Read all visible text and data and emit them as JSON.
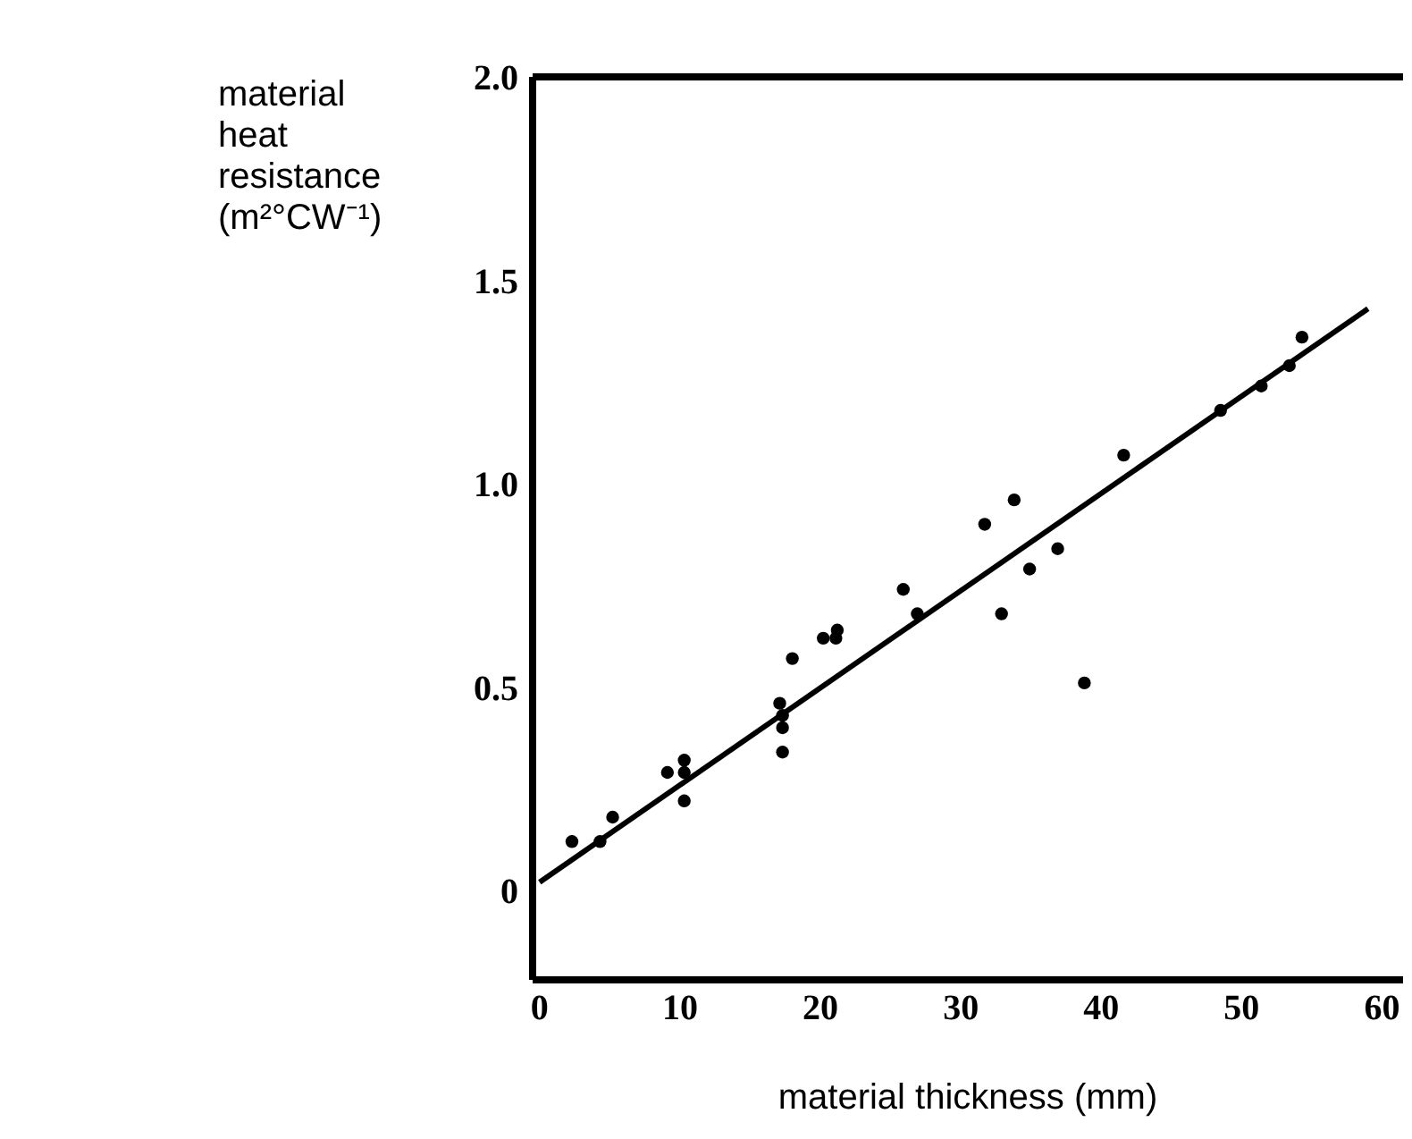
{
  "chart_data": {
    "type": "scatter",
    "xlabel": "material thickness (mm)",
    "ylabel": "material heat resistance (m²°CW⁻¹)",
    "xlim": [
      -0.5,
      61.5
    ],
    "ylim": [
      -0.22,
      2.0
    ],
    "xticks": [
      0,
      10,
      20,
      30,
      40,
      50,
      60
    ],
    "yticks": [
      {
        "value": 0,
        "label": "0"
      },
      {
        "value": 0.5,
        "label": "0.5"
      },
      {
        "value": 1,
        "label": "1.0"
      },
      {
        "value": 1.5,
        "label": "1.5"
      },
      {
        "value": 2,
        "label": "2.0"
      }
    ],
    "marker": "circle",
    "series": [
      {
        "color": "#000000",
        "x": [
          2.3,
          4.3,
          5.2,
          9.1,
          10.3,
          10.3,
          10.3,
          17.1,
          17.3,
          17.3,
          17.3,
          18.0,
          20.2,
          21.2,
          21.1,
          25.9,
          26.9,
          31.7,
          33.8,
          32.9,
          34.9,
          36.9,
          38.8,
          41.6,
          48.5,
          51.4,
          53.4,
          54.3
        ],
        "values": [
          0.12,
          0.12,
          0.18,
          0.29,
          0.32,
          0.29,
          0.22,
          0.46,
          0.43,
          0.4,
          0.34,
          0.57,
          0.62,
          0.64,
          0.62,
          0.74,
          0.68,
          0.9,
          0.96,
          0.68,
          0.79,
          0.84,
          0.51,
          1.07,
          1.18,
          1.24,
          1.29,
          1.36
        ]
      },
      {
        "type": "line",
        "color": "#000000",
        "x": [
          0,
          59
        ],
        "values": [
          0.02,
          1.43
        ],
        "marker": "none"
      }
    ]
  }
}
